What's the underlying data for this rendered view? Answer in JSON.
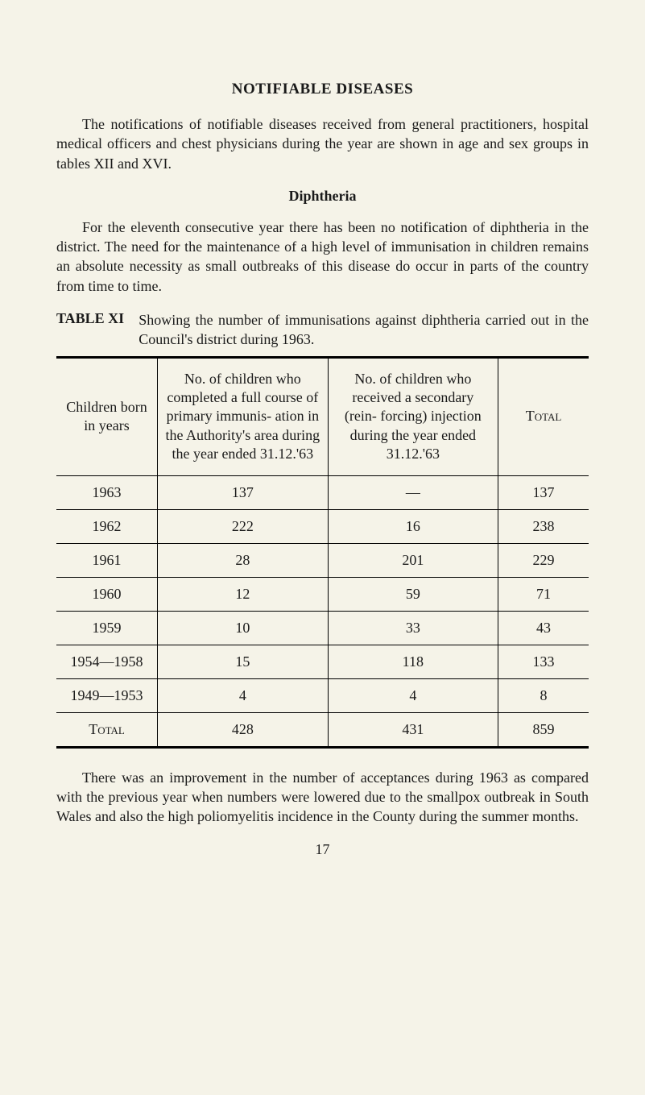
{
  "title": "NOTIFIABLE DISEASES",
  "para1": "The notifications of notifiable diseases received from general practitioners, hospital medical officers and chest physicians during the year are shown in age and sex groups in tables XII and XVI.",
  "subheading": "Diphtheria",
  "para2": "For the eleventh consecutive year there has been no notification of diphtheria in the district. The need for the maintenance of a high level of immunisation in children remains an absolute necessity as small outbreaks of this disease do occur in parts of the country from time to time.",
  "table_label": "TABLE XI",
  "table_desc": "Showing the number of immunisations against diphtheria carried out in the Council's district during 1963.",
  "table": {
    "headers": {
      "col1": "Children born in years",
      "col2": "No. of children who completed a full course of primary immunis- ation in the Authority's area during the year ended 31.12.'63",
      "col3": "No. of children who received a secondary (rein- forcing) injection during the year ended 31.12.'63",
      "col4": "Total"
    },
    "rows": [
      {
        "year": "1963",
        "primary": "137",
        "secondary": "—",
        "total": "137"
      },
      {
        "year": "1962",
        "primary": "222",
        "secondary": "16",
        "total": "238"
      },
      {
        "year": "1961",
        "primary": "28",
        "secondary": "201",
        "total": "229"
      },
      {
        "year": "1960",
        "primary": "12",
        "secondary": "59",
        "total": "71"
      },
      {
        "year": "1959",
        "primary": "10",
        "secondary": "33",
        "total": "43"
      },
      {
        "year": "1954—1958",
        "primary": "15",
        "secondary": "118",
        "total": "133"
      },
      {
        "year": "1949—1953",
        "primary": "4",
        "secondary": "4",
        "total": "8"
      }
    ],
    "footer": {
      "label": "Total",
      "primary": "428",
      "secondary": "431",
      "total": "859"
    }
  },
  "para3": "There was an improvement in the number of acceptances during 1963 as compared with the previous year when numbers were lowered due to the smallpox outbreak in South Wales and also the high poliomyelitis incidence in the County during the summer months.",
  "page_number": "17"
}
